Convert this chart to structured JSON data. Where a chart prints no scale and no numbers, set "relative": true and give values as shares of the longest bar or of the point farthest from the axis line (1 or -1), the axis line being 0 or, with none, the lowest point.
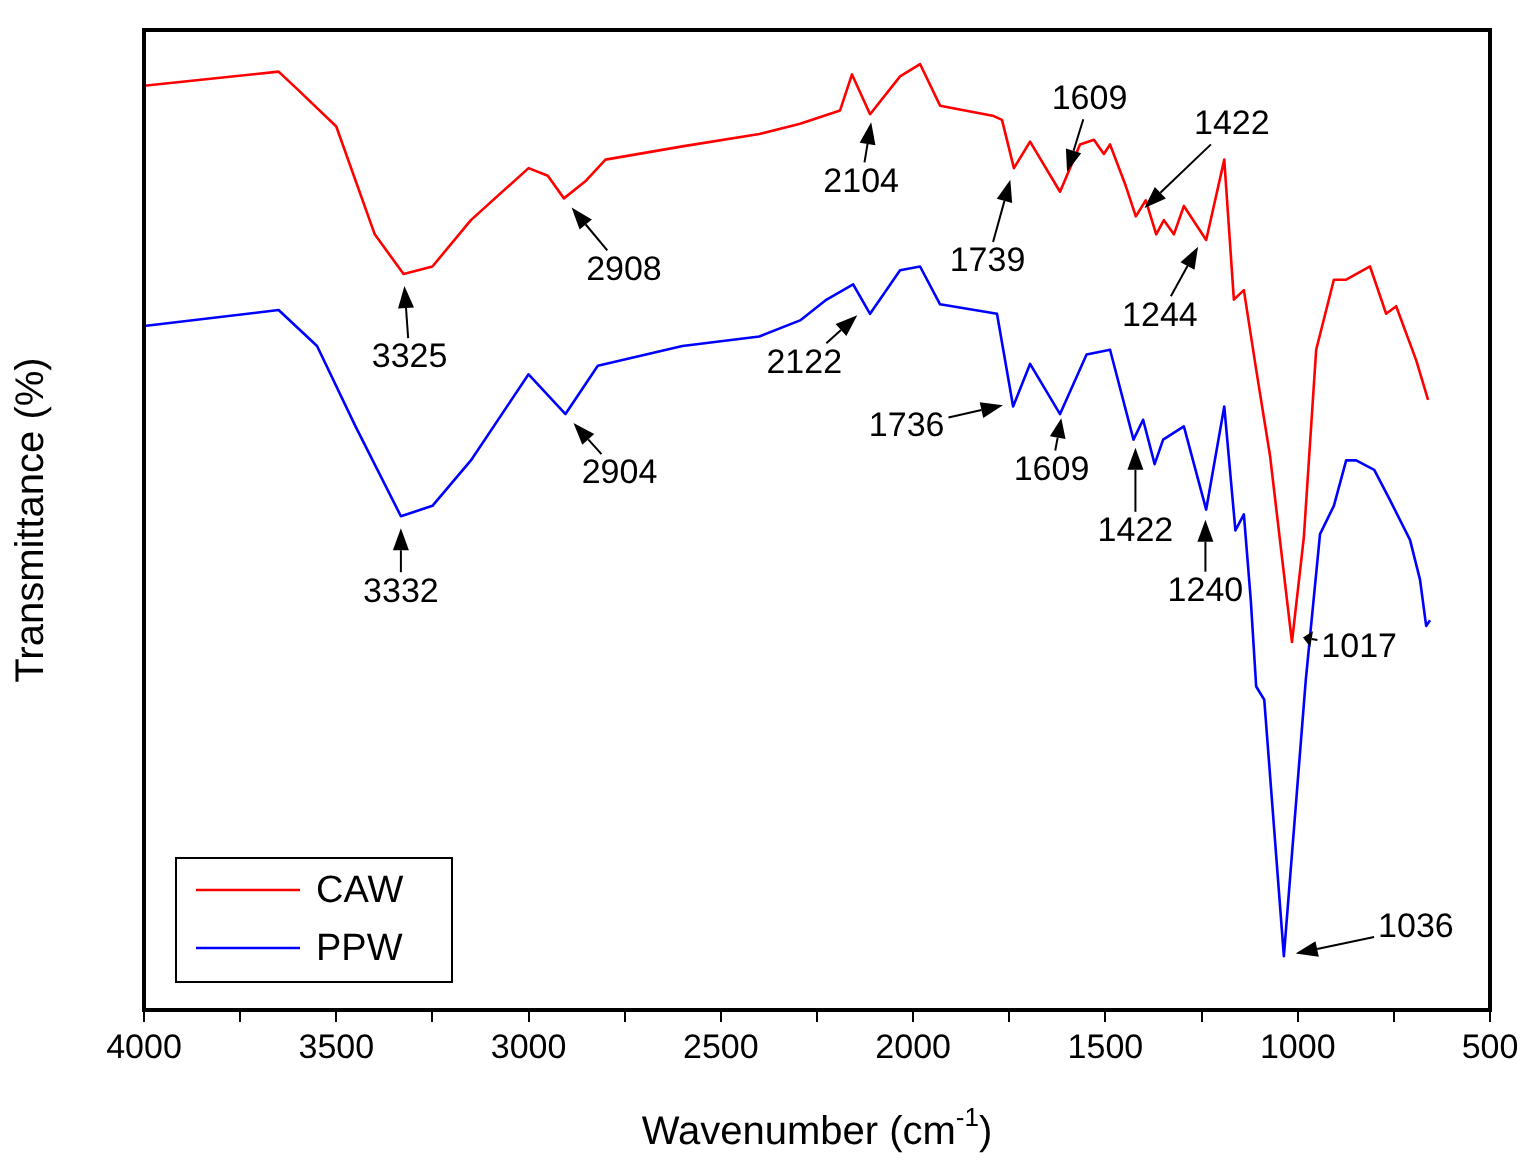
{
  "chart_data": {
    "type": "line",
    "relative": true,
    "xlabel": "Wavenumber (cm$^{-1}$)",
    "ylabel": "Transmittance (%)",
    "xlim": [
      4000,
      500
    ],
    "xticks": [
      4000,
      {
        "value": 3750,
        "label": null
      },
      3500,
      {
        "value": 3250,
        "label": null
      },
      3000,
      {
        "value": 2750,
        "label": null
      },
      2500,
      {
        "value": 2250,
        "label": null
      },
      2000,
      {
        "value": 1750,
        "label": null
      },
      1500,
      {
        "value": 1250,
        "label": null
      },
      1000,
      {
        "value": 750,
        "label": null
      },
      500
    ],
    "grid": false,
    "legend": "bottom left",
    "marker": "none",
    "line_style": "solid",
    "series": [
      {
        "name": "CAW",
        "color": "#ff0000",
        "x": [
          4000,
          3650,
          3600,
          3500,
          3400,
          3325,
          3250,
          3150,
          3000,
          2950,
          2908,
          2850,
          2800,
          2600,
          2400,
          2294,
          2190,
          2159,
          2112,
          2034,
          1982,
          1930,
          1790,
          1769,
          1738,
          1696,
          1618,
          1566,
          1530,
          1504,
          1488,
          1447,
          1421,
          1395,
          1368,
          1348,
          1322,
          1296,
          1238,
          1191,
          1166,
          1140,
          1108,
          1072,
          1015,
          984,
          952,
          906,
          874,
          812,
          770,
          744,
          692,
          661
        ],
        "values": [
          0.977,
          0.992,
          0.973,
          0.934,
          0.82,
          0.778,
          0.786,
          0.835,
          0.89,
          0.882,
          0.858,
          0.877,
          0.899,
          0.913,
          0.926,
          0.937,
          0.951,
          0.989,
          0.947,
          0.987,
          1.0,
          0.956,
          0.945,
          0.941,
          0.89,
          0.918,
          0.865,
          0.915,
          0.92,
          0.905,
          0.915,
          0.871,
          0.839,
          0.856,
          0.82,
          0.835,
          0.82,
          0.85,
          0.814,
          0.899,
          0.751,
          0.761,
          0.677,
          0.586,
          0.389,
          0.5,
          0.698,
          0.772,
          0.772,
          0.786,
          0.736,
          0.744,
          0.687,
          0.645
        ]
      },
      {
        "name": "PPW",
        "color": "#0000ff",
        "x": [
          4000,
          3650,
          3550,
          3450,
          3332,
          3250,
          3150,
          3000,
          2904,
          2820,
          2600,
          2400,
          2294,
          2225,
          2156,
          2112,
          2034,
          1982,
          1930,
          1782,
          1740,
          1696,
          1618,
          1549,
          1488,
          1427,
          1402,
          1372,
          1350,
          1296,
          1238,
          1191,
          1162,
          1140,
          1122,
          1108,
          1087,
          1036,
          979,
          942,
          906,
          874,
          848,
          801,
          760,
          708,
          682,
          666,
          656
        ],
        "values": [
          0.723,
          0.74,
          0.702,
          0.617,
          0.522,
          0.533,
          0.581,
          0.672,
          0.63,
          0.681,
          0.702,
          0.712,
          0.729,
          0.751,
          0.767,
          0.736,
          0.782,
          0.786,
          0.746,
          0.736,
          0.638,
          0.683,
          0.63,
          0.693,
          0.698,
          0.603,
          0.624,
          0.577,
          0.603,
          0.617,
          0.529,
          0.638,
          0.507,
          0.524,
          0.433,
          0.342,
          0.328,
          0.057,
          0.349,
          0.503,
          0.533,
          0.581,
          0.581,
          0.571,
          0.539,
          0.497,
          0.455,
          0.406,
          0.412
        ]
      }
    ],
    "annotations": [
      {
        "text": "3325",
        "x": 3325,
        "y": 0.778
      },
      {
        "text": "2908",
        "x": 2908,
        "y": 0.858
      },
      {
        "text": "2104",
        "x": 2104,
        "y": 0.951
      },
      {
        "text": "1739",
        "x": 1739,
        "y": 0.89
      },
      {
        "text": "1609",
        "x": 1609,
        "y": 0.874
      },
      {
        "text": "1422",
        "x": 1421,
        "y": 0.839
      },
      {
        "text": "1244",
        "x": 1244,
        "y": 0.818
      },
      {
        "text": "1017",
        "x": 1017,
        "y": 0.396
      },
      {
        "text": "3332",
        "x": 3332,
        "y": 0.522
      },
      {
        "text": "2904",
        "x": 2904,
        "y": 0.63
      },
      {
        "text": "2122",
        "x": 2122,
        "y": 0.743
      },
      {
        "text": "1736",
        "x": 1736,
        "y": 0.642
      },
      {
        "text": "1609",
        "x": 1609,
        "y": 0.638
      },
      {
        "text": "1422",
        "x": 1422,
        "y": 0.607
      },
      {
        "text": "1240",
        "x": 1240,
        "y": 0.531
      },
      {
        "text": "1036",
        "x": 1036,
        "y": 0.057
      }
    ]
  }
}
